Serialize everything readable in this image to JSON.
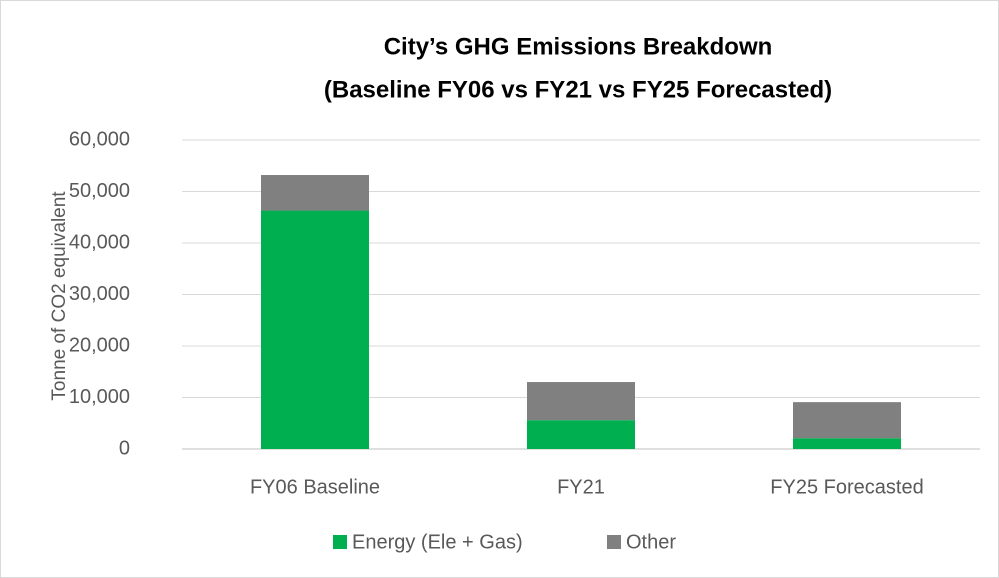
{
  "chart_data": {
    "type": "bar",
    "stacked": true,
    "title": [
      "City’s GHG Emissions Breakdown",
      "(Baseline FY06 vs FY21 vs FY25 Forecasted)"
    ],
    "y_label": "Tonne of CO2 equivalent",
    "categories": [
      "FY06 Baseline",
      "FY21",
      "FY25 Forecasted"
    ],
    "series": [
      {
        "name": "Energy (Ele + Gas)",
        "color": "#00b050",
        "values": [
          46300,
          5600,
          2100
        ]
      },
      {
        "name": "Other",
        "color": "#808080",
        "values": [
          6900,
          7400,
          7000
        ]
      }
    ],
    "ylim": [
      0,
      60000
    ],
    "yticks": [
      0,
      {
        "value": 10000,
        "label": "10,000"
      },
      {
        "value": 20000,
        "label": "20,000"
      },
      {
        "value": 30000,
        "label": "30,000"
      },
      {
        "value": 40000,
        "label": "40,000"
      },
      {
        "value": 50000,
        "label": "50,000"
      },
      {
        "value": 60000,
        "label": "60,000"
      }
    ],
    "grid": true,
    "legend": "bottom"
  }
}
